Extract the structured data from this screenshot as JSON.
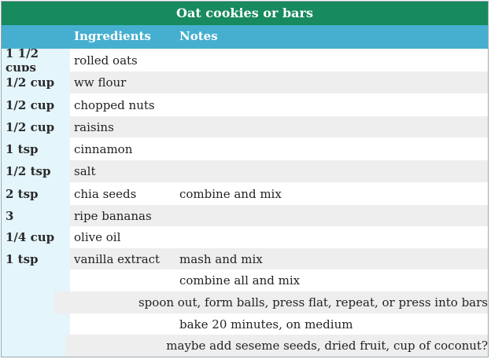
{
  "table": {
    "title": "Oat cookies or bars",
    "headers": {
      "quantity": "",
      "ingredients": "Ingredients",
      "notes": "Notes"
    },
    "rows": [
      {
        "quantity": "1 1/2 cups",
        "ingredient": "rolled oats",
        "note": ""
      },
      {
        "quantity": "1/2 cup",
        "ingredient": "ww flour",
        "note": ""
      },
      {
        "quantity": "1/2 cup",
        "ingredient": "chopped nuts",
        "note": ""
      },
      {
        "quantity": "1/2 cup",
        "ingredient": "raisins",
        "note": ""
      },
      {
        "quantity": "1 tsp",
        "ingredient": "cinnamon",
        "note": ""
      },
      {
        "quantity": "1/2 tsp",
        "ingredient": "salt",
        "note": ""
      },
      {
        "quantity": "2 tsp",
        "ingredient": "chia seeds",
        "note": "combine and mix"
      },
      {
        "quantity": "3",
        "ingredient": "ripe bananas",
        "note": ""
      },
      {
        "quantity": "1/4 cup",
        "ingredient": "olive oil",
        "note": ""
      },
      {
        "quantity": "1 tsp",
        "ingredient": "vanilla extract",
        "note": "mash and mix"
      },
      {
        "quantity": "",
        "ingredient": "",
        "note": "combine all and mix"
      },
      {
        "quantity": "",
        "ingredient": "",
        "note": "spoon out, form balls, press flat, repeat, or press into bars"
      },
      {
        "quantity": "",
        "ingredient": "",
        "note": "bake 20 minutes, on medium"
      },
      {
        "quantity": "",
        "ingredient": "",
        "note": "maybe add seseme seeds, dried fruit, cup of coconut?"
      }
    ]
  },
  "colors": {
    "title_bg": "#178a5e",
    "header_bg": "#46afcf",
    "quantity_col_bg": "#e4f5fb",
    "stripe_bg": "#eeeeee"
  }
}
